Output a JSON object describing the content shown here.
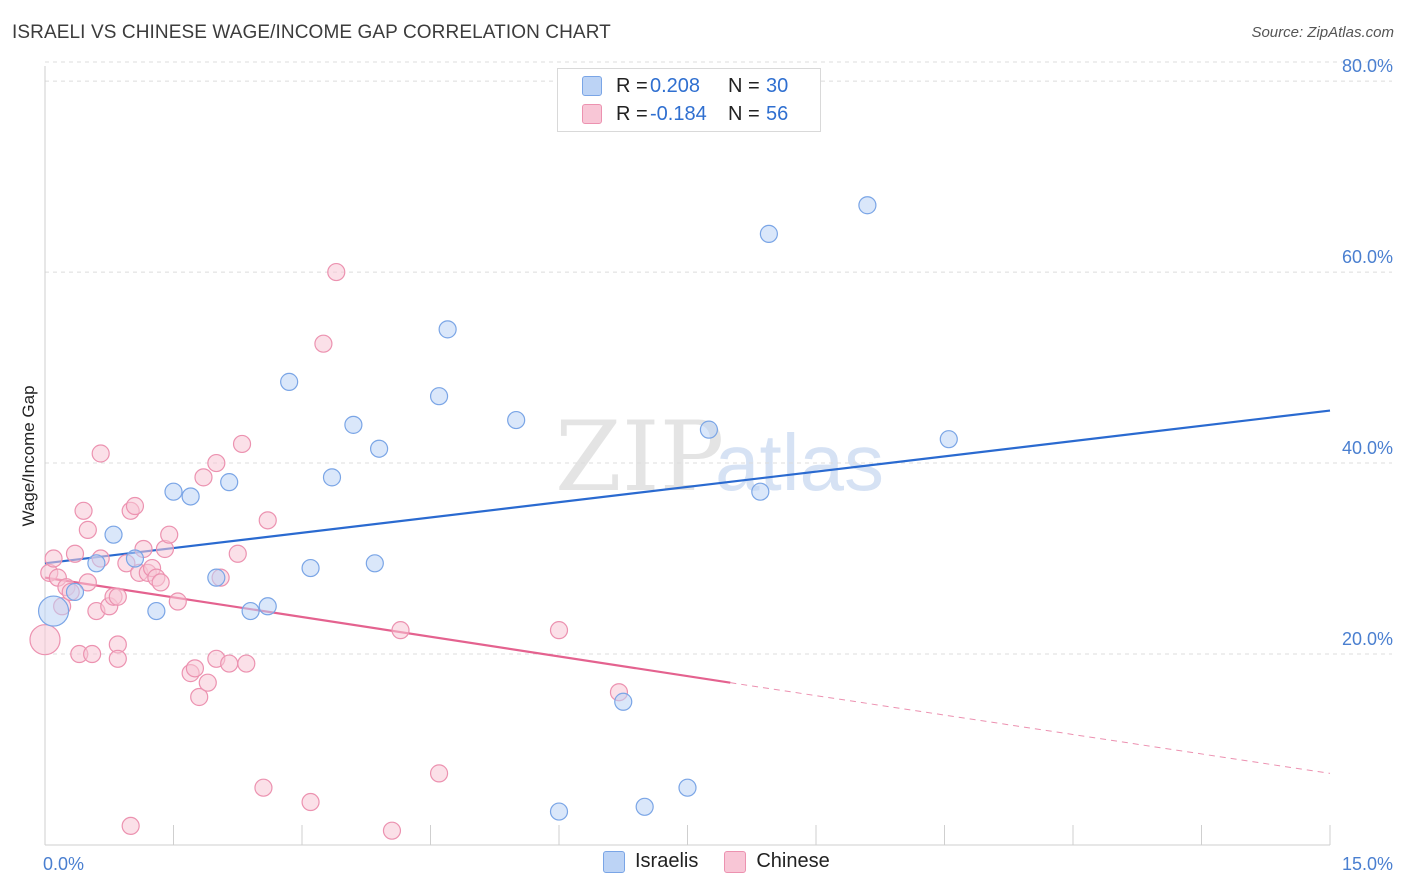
{
  "header": {
    "title": "ISRAELI VS CHINESE WAGE/INCOME GAP CORRELATION CHART",
    "source": "Source: ZipAtlas.com"
  },
  "legend": {
    "rows": [
      {
        "r_label": "R =",
        "r_value": "0.208",
        "n_label": "N =",
        "n_value": "30"
      },
      {
        "r_label": "R =",
        "r_value": "-0.184",
        "n_label": "N =",
        "n_value": "56"
      }
    ]
  },
  "bottom_legend": {
    "items": [
      "Israelis",
      "Chinese"
    ]
  },
  "colors": {
    "israelis_fill": "#bcd3f5",
    "israelis_stroke": "#7aa5e6",
    "israelis_line": "#2a6ad0",
    "chinese_fill": "#f8c6d6",
    "chinese_stroke": "#ec92b0",
    "chinese_line": "#e4628f",
    "tick_label": "#4a7fd0",
    "grid": "#dcdcdc"
  },
  "chart_data": {
    "type": "scatter",
    "title": "ISRAELI VS CHINESE WAGE/INCOME GAP CORRELATION CHART",
    "xlabel": "",
    "ylabel": "Wage/Income Gap",
    "xlim": [
      0,
      15
    ],
    "ylim": [
      0,
      82
    ],
    "x_tick_labels": [
      {
        "value": 0,
        "label": "0.0%"
      },
      {
        "value": 15,
        "label": "15.0%"
      }
    ],
    "y_tick_labels": [
      {
        "value": 20,
        "label": "20.0%"
      },
      {
        "value": 40,
        "label": "40.0%"
      },
      {
        "value": 60,
        "label": "60.0%"
      },
      {
        "value": 80,
        "label": "80.0%"
      }
    ],
    "grid": "horizontal dashed",
    "legend_position": "top-center",
    "series": [
      {
        "name": "Israelis",
        "points": [
          {
            "x": 0.1,
            "y": 24.5,
            "big": true
          },
          {
            "x": 0.35,
            "y": 26.5
          },
          {
            "x": 0.6,
            "y": 29.5
          },
          {
            "x": 0.8,
            "y": 32.5
          },
          {
            "x": 1.05,
            "y": 30.0
          },
          {
            "x": 1.3,
            "y": 24.5
          },
          {
            "x": 1.5,
            "y": 37.0
          },
          {
            "x": 1.7,
            "y": 36.5
          },
          {
            "x": 2.0,
            "y": 28.0
          },
          {
            "x": 2.15,
            "y": 38.0
          },
          {
            "x": 2.4,
            "y": 24.5
          },
          {
            "x": 2.6,
            "y": 25.0
          },
          {
            "x": 2.85,
            "y": 48.5
          },
          {
            "x": 3.1,
            "y": 29.0
          },
          {
            "x": 3.35,
            "y": 38.5
          },
          {
            "x": 3.6,
            "y": 44.0
          },
          {
            "x": 3.85,
            "y": 29.5
          },
          {
            "x": 3.9,
            "y": 41.5
          },
          {
            "x": 4.6,
            "y": 47.0
          },
          {
            "x": 4.7,
            "y": 54.0
          },
          {
            "x": 5.5,
            "y": 44.5
          },
          {
            "x": 6.0,
            "y": 3.5
          },
          {
            "x": 6.75,
            "y": 15.0
          },
          {
            "x": 7.0,
            "y": 4.0
          },
          {
            "x": 7.5,
            "y": 6.0
          },
          {
            "x": 7.75,
            "y": 43.5
          },
          {
            "x": 8.35,
            "y": 37.0
          },
          {
            "x": 8.45,
            "y": 64.0
          },
          {
            "x": 9.6,
            "y": 67.0
          },
          {
            "x": 10.55,
            "y": 42.5
          }
        ]
      },
      {
        "name": "Chinese",
        "points": [
          {
            "x": 0.0,
            "y": 21.5,
            "big": true
          },
          {
            "x": 0.05,
            "y": 28.5
          },
          {
            "x": 0.1,
            "y": 30.0
          },
          {
            "x": 0.15,
            "y": 28.0
          },
          {
            "x": 0.2,
            "y": 25.0
          },
          {
            "x": 0.25,
            "y": 27.0
          },
          {
            "x": 0.3,
            "y": 26.5
          },
          {
            "x": 0.35,
            "y": 30.5
          },
          {
            "x": 0.4,
            "y": 20.0
          },
          {
            "x": 0.45,
            "y": 35.0
          },
          {
            "x": 0.5,
            "y": 27.5
          },
          {
            "x": 0.5,
            "y": 33.0
          },
          {
            "x": 0.55,
            "y": 20.0
          },
          {
            "x": 0.6,
            "y": 24.5
          },
          {
            "x": 0.65,
            "y": 30.0
          },
          {
            "x": 0.65,
            "y": 41.0
          },
          {
            "x": 0.75,
            "y": 25.0
          },
          {
            "x": 0.8,
            "y": 26.0
          },
          {
            "x": 0.85,
            "y": 26.0
          },
          {
            "x": 0.85,
            "y": 21.0
          },
          {
            "x": 0.85,
            "y": 19.5
          },
          {
            "x": 0.95,
            "y": 29.5
          },
          {
            "x": 1.0,
            "y": 35.0
          },
          {
            "x": 1.05,
            "y": 35.5
          },
          {
            "x": 1.1,
            "y": 28.5
          },
          {
            "x": 1.15,
            "y": 31.0
          },
          {
            "x": 1.2,
            "y": 28.5
          },
          {
            "x": 1.25,
            "y": 29.0
          },
          {
            "x": 1.3,
            "y": 28.0
          },
          {
            "x": 1.35,
            "y": 27.5
          },
          {
            "x": 1.4,
            "y": 31.0
          },
          {
            "x": 1.45,
            "y": 32.5
          },
          {
            "x": 1.55,
            "y": 25.5
          },
          {
            "x": 1.7,
            "y": 18.0
          },
          {
            "x": 1.75,
            "y": 18.5
          },
          {
            "x": 1.8,
            "y": 15.5
          },
          {
            "x": 1.85,
            "y": 38.5
          },
          {
            "x": 1.9,
            "y": 17.0
          },
          {
            "x": 2.0,
            "y": 19.5
          },
          {
            "x": 2.0,
            "y": 40.0
          },
          {
            "x": 2.05,
            "y": 28.0
          },
          {
            "x": 2.15,
            "y": 19.0
          },
          {
            "x": 2.25,
            "y": 30.5
          },
          {
            "x": 2.3,
            "y": 42.0
          },
          {
            "x": 2.35,
            "y": 19.0
          },
          {
            "x": 1.0,
            "y": 2.0
          },
          {
            "x": 2.55,
            "y": 6.0
          },
          {
            "x": 2.6,
            "y": 34.0
          },
          {
            "x": 3.1,
            "y": 4.5
          },
          {
            "x": 3.25,
            "y": 52.5
          },
          {
            "x": 3.4,
            "y": 60.0
          },
          {
            "x": 4.05,
            "y": 1.5
          },
          {
            "x": 4.15,
            "y": 22.5
          },
          {
            "x": 4.6,
            "y": 7.5
          },
          {
            "x": 6.0,
            "y": 22.5
          },
          {
            "x": 6.7,
            "y": 16.0
          }
        ]
      }
    ],
    "trend_lines": [
      {
        "series": "Israelis",
        "x1": 0.0,
        "y1": 29.5,
        "x2": 15.0,
        "y2": 45.5,
        "style": "solid"
      },
      {
        "series": "Chinese",
        "x1": 0.0,
        "y1": 28.0,
        "x2": 8.0,
        "y2": 17.0,
        "style": "solid"
      },
      {
        "series": "Chinese",
        "x1": 8.0,
        "y1": 17.0,
        "x2": 15.0,
        "y2": 7.5,
        "style": "dashed"
      }
    ]
  }
}
